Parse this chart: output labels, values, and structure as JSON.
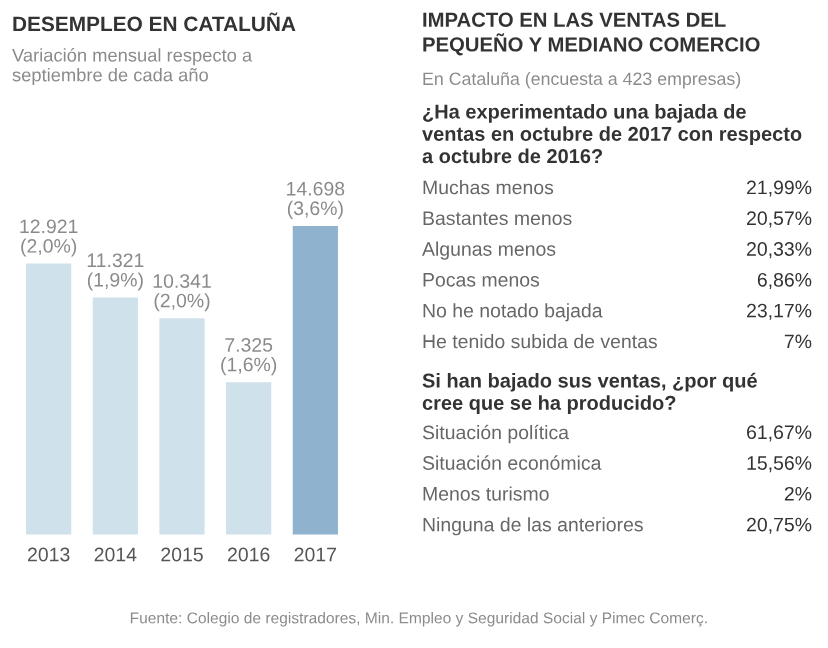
{
  "chart_data": [
    {
      "type": "bar",
      "title": "DESEMPLEO EN CATALUÑA",
      "subtitle": "Variación mensual respecto a septiembre de cada año",
      "categories": [
        "2013",
        "2014",
        "2015",
        "2016",
        "2017"
      ],
      "values": [
        12921,
        11321,
        10341,
        7325,
        14698
      ],
      "colors": [
        "#cfe1eb",
        "#cfe1eb",
        "#cfe1eb",
        "#cfe1eb",
        "#8fb3cf"
      ],
      "value_labels": [
        "12.921\n(2,0%)",
        "11.321\n(1,9%)",
        "10.341\n(2,0%)",
        "7.325\n(1,6%)",
        "14.698\n(3,6%)"
      ],
      "annotations": [
        "Fuente: Colegio de registradores, Min. Empleo y Seguridad Social y Pimec Comerç."
      ]
    },
    {
      "type": "other",
      "title": "IMPACTO EN LAS VENTAS DEL PEQUEÑO Y MEDIANO COMERCIO",
      "subtitle": "En Cataluña (encuesta a 423 empresas)",
      "annotations": [
        "¿Ha experimentado una bajada de ventas en octubre de 2017 con respecto a octubre de 2016?"
      ],
      "categories": [
        "Muchas menos",
        "Bastantes menos",
        "Algunas menos",
        "Pocas menos",
        "No he notado bajada",
        "He tenido subida de ventas"
      ],
      "value_labels": [
        "21,99%",
        "20,57%",
        "20,33%",
        "6,86%",
        "23,17%",
        "7%"
      ]
    },
    {
      "type": "other",
      "annotations": [
        "Si han bajado sus ventas, ¿por qué cree que se ha producido?"
      ],
      "categories": [
        "Situación política",
        "Situación económica",
        "Menos turismo",
        "Ninguna de las anteriores"
      ],
      "value_labels": [
        "61,67%",
        "15,56%",
        "2%",
        "20,75%"
      ]
    }
  ]
}
